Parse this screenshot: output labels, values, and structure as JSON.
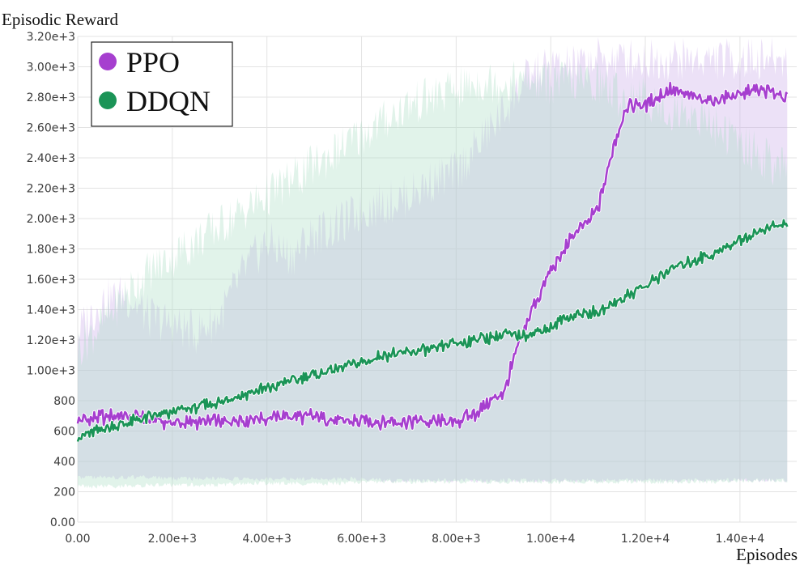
{
  "chart_data": {
    "type": "line",
    "title": "",
    "ylabel": "Episodic Reward",
    "xlabel": "Episodes",
    "xlim": [
      0,
      15200
    ],
    "ylim": [
      0,
      3200
    ],
    "grid": true,
    "legend_position": "top-left",
    "x_ticks": [
      {
        "value": 0,
        "label": "0.00"
      },
      {
        "value": 2000,
        "label": "2.00e+3"
      },
      {
        "value": 4000,
        "label": "4.00e+3"
      },
      {
        "value": 6000,
        "label": "6.00e+3"
      },
      {
        "value": 8000,
        "label": "8.00e+3"
      },
      {
        "value": 10000,
        "label": "1.00e+4"
      },
      {
        "value": 12000,
        "label": "1.20e+4"
      },
      {
        "value": 14000,
        "label": "1.40e+4"
      }
    ],
    "y_ticks": [
      {
        "value": 0,
        "label": "0.00"
      },
      {
        "value": 200,
        "label": "200"
      },
      {
        "value": 400,
        "label": "400"
      },
      {
        "value": 600,
        "label": "600"
      },
      {
        "value": 800,
        "label": "800"
      },
      {
        "value": 1000,
        "label": "1.00e+3"
      },
      {
        "value": 1200,
        "label": "1.20e+3"
      },
      {
        "value": 1400,
        "label": "1.40e+3"
      },
      {
        "value": 1600,
        "label": "1.60e+3"
      },
      {
        "value": 1800,
        "label": "1.80e+3"
      },
      {
        "value": 2000,
        "label": "2.00e+3"
      },
      {
        "value": 2200,
        "label": "2.20e+3"
      },
      {
        "value": 2400,
        "label": "2.40e+3"
      },
      {
        "value": 2600,
        "label": "2.60e+3"
      },
      {
        "value": 2800,
        "label": "2.80e+3"
      },
      {
        "value": 3000,
        "label": "3.00e+3"
      },
      {
        "value": 3200,
        "label": "3.20e+3"
      }
    ],
    "series": [
      {
        "name": "PPO",
        "color": "#a63fcf",
        "band_color": "#c8a8e8",
        "x": [
          0,
          500,
          1000,
          1500,
          2000,
          2500,
          3000,
          3500,
          4000,
          4500,
          5000,
          5500,
          6000,
          6500,
          7000,
          7500,
          8000,
          8500,
          9000,
          9300,
          9600,
          10000,
          10500,
          11000,
          11300,
          11600,
          12000,
          12500,
          13000,
          13500,
          14000,
          14500,
          15000
        ],
        "y": [
          660,
          690,
          700,
          680,
          650,
          650,
          660,
          680,
          690,
          700,
          700,
          670,
          660,
          660,
          670,
          660,
          660,
          730,
          850,
          1150,
          1400,
          1650,
          1900,
          2050,
          2450,
          2750,
          2750,
          2850,
          2800,
          2780,
          2820,
          2850,
          2800
        ],
        "band_low": [
          280,
          280,
          280,
          280,
          270,
          270,
          270,
          270,
          270,
          270,
          270,
          270,
          270,
          260,
          260,
          260,
          260,
          260,
          260,
          260,
          260,
          260,
          260,
          260,
          260,
          260,
          260,
          260,
          260,
          260,
          260,
          260,
          260
        ],
        "band_high": [
          1250,
          1450,
          1500,
          1350,
          1300,
          1250,
          1350,
          1650,
          1850,
          1750,
          1900,
          1950,
          2050,
          2100,
          2150,
          2250,
          2300,
          2500,
          2700,
          2850,
          2950,
          3000,
          3000,
          3050,
          3050,
          3050,
          3050,
          3050,
          3050,
          3050,
          3050,
          3050,
          3050
        ]
      },
      {
        "name": "DDQN",
        "color": "#1b9457",
        "band_color": "#a8dcc3",
        "x": [
          0,
          500,
          1000,
          1500,
          2000,
          2500,
          3000,
          3500,
          4000,
          4500,
          5000,
          5500,
          6000,
          6500,
          7000,
          7500,
          8000,
          8500,
          9000,
          9500,
          10000,
          10500,
          11000,
          11500,
          12000,
          12500,
          13000,
          13500,
          14000,
          14500,
          15000
        ],
        "y": [
          560,
          610,
          650,
          690,
          720,
          760,
          790,
          840,
          880,
          930,
          970,
          1010,
          1050,
          1100,
          1120,
          1140,
          1180,
          1210,
          1230,
          1240,
          1280,
          1370,
          1380,
          1470,
          1560,
          1660,
          1720,
          1780,
          1860,
          1930,
          1960
        ],
        "band_low": [
          220,
          220,
          220,
          230,
          230,
          230,
          230,
          240,
          240,
          240,
          240,
          240,
          250,
          250,
          250,
          250,
          250,
          250,
          250,
          250,
          250,
          250,
          250,
          250,
          250,
          250,
          250,
          250,
          260,
          260,
          260
        ],
        "band_high": [
          1150,
          1300,
          1500,
          1650,
          1750,
          1850,
          1950,
          2050,
          2150,
          2250,
          2350,
          2450,
          2550,
          2650,
          2750,
          2800,
          2850,
          2900,
          2900,
          2900,
          2900,
          2900,
          2900,
          2800,
          2800,
          2700,
          2700,
          2600,
          2500,
          2400,
          2300
        ]
      }
    ]
  }
}
